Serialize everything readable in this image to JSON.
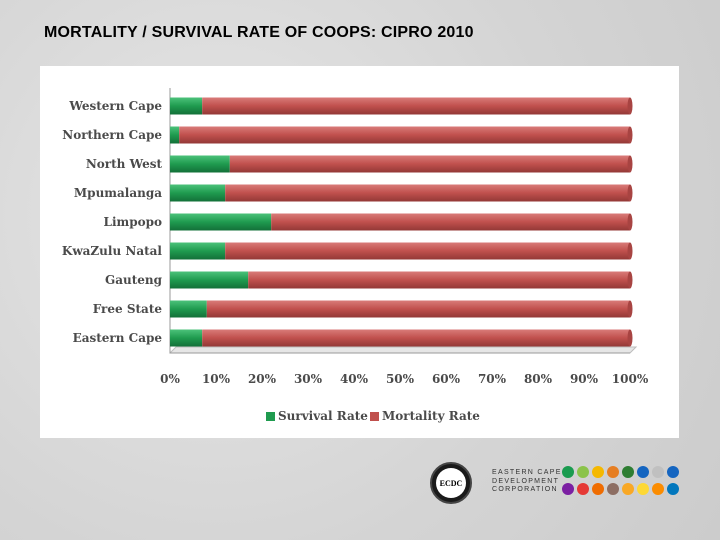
{
  "slide": {
    "title": "MORTALITY / SURVIVAL RATE OF COOPS: CIPRO 2010"
  },
  "chart_data": {
    "type": "bar",
    "orientation": "horizontal",
    "stacked": true,
    "percent": true,
    "title": "",
    "xlabel": "",
    "ylabel": "",
    "categories": [
      "Western Cape",
      "Northern Cape",
      "North West",
      "Mpumalanga",
      "Limpopo",
      "KwaZulu Natal",
      "Gauteng",
      "Free State",
      "Eastern Cape"
    ],
    "series": [
      {
        "name": "Survival Rate",
        "color": "#1f9b4f",
        "values": [
          7,
          2,
          13,
          12,
          22,
          12,
          17,
          8,
          7
        ]
      },
      {
        "name": "Mortality Rate",
        "color": "#c0504d",
        "values": [
          93,
          98,
          87,
          88,
          78,
          88,
          83,
          92,
          93
        ]
      }
    ],
    "xlim": [
      0,
      100
    ],
    "x_ticks": [
      "0%",
      "10%",
      "20%",
      "30%",
      "40%",
      "50%",
      "60%",
      "70%",
      "80%",
      "90%",
      "100%"
    ],
    "legend_position": "bottom",
    "grid": false
  },
  "logo": {
    "seal_text": "ECDC",
    "lines": [
      "EASTERN CAPE",
      "DEVELOPMENT",
      "CORPORATION"
    ],
    "icon_colors_row1": [
      "#1a9b4f",
      "#8bc34a",
      "#f5b800",
      "#e67e22",
      "#2e7d32",
      "#1565c0",
      "#c0c0c0",
      "#1565c0"
    ],
    "icon_colors_row2": [
      "#7b1fa2",
      "#e53935",
      "#ef6c00",
      "#8d6e63",
      "#f9a825",
      "#fdd835",
      "#fb8c00",
      "#0277bd"
    ]
  }
}
